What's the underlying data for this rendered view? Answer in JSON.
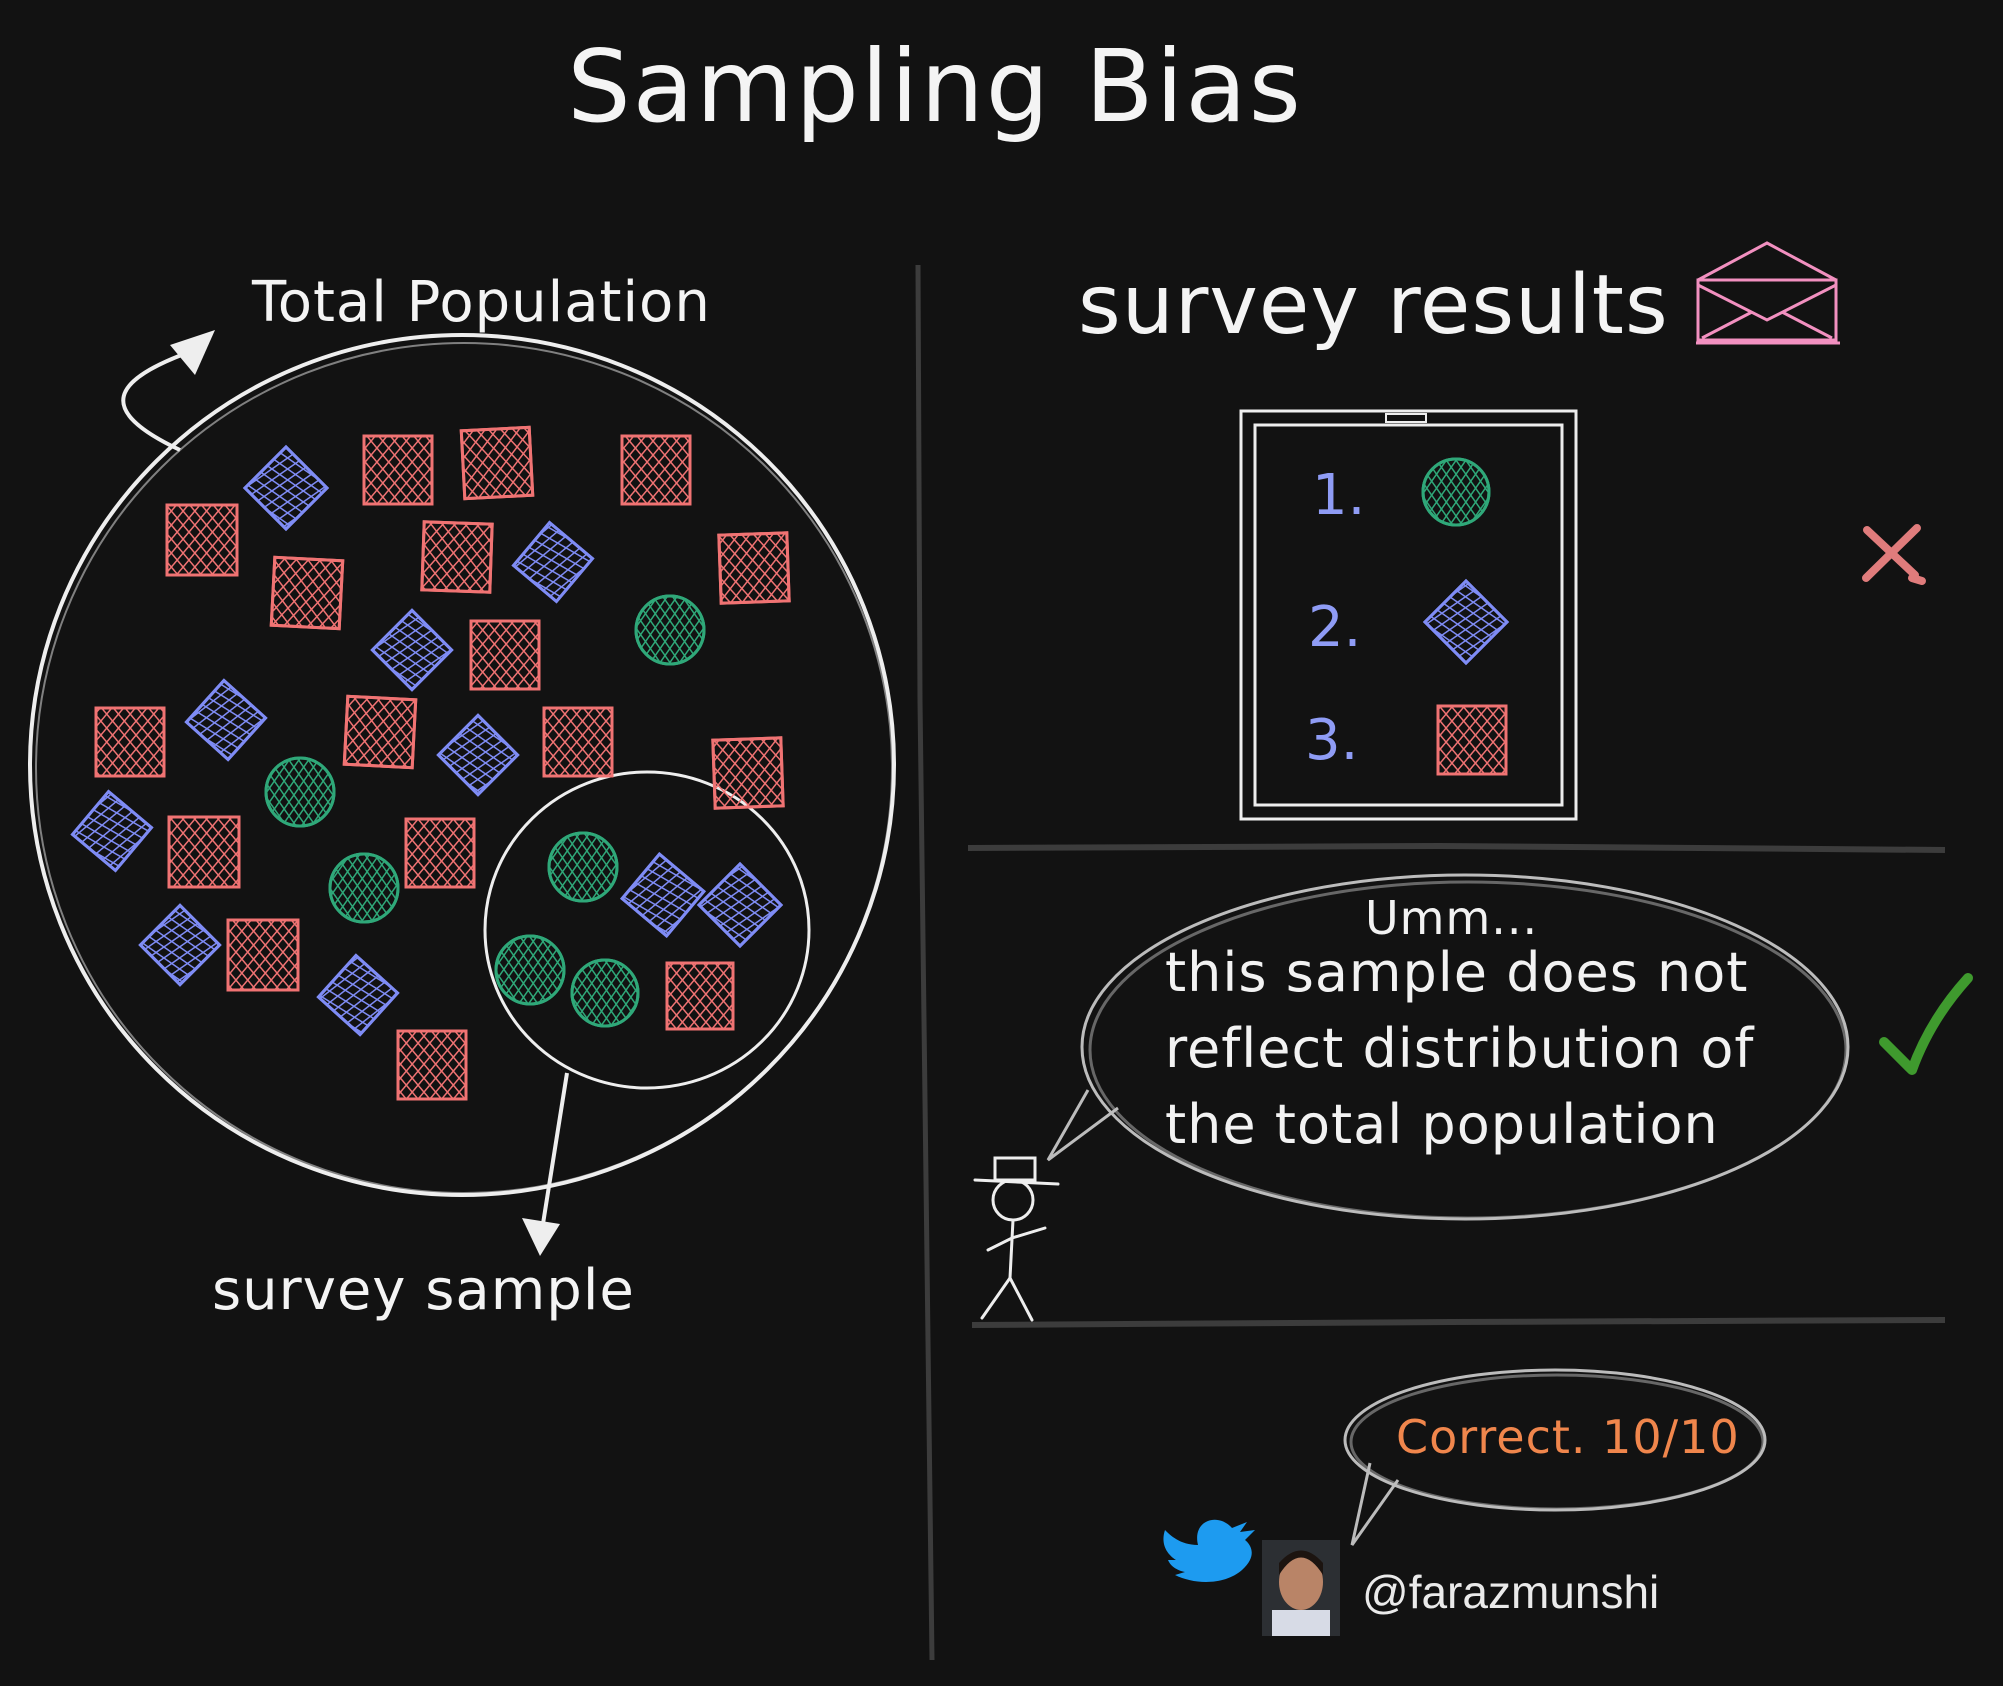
{
  "title": "Sampling Bias",
  "left": {
    "population_label": "Total Population",
    "sample_label": "survey sample"
  },
  "right": {
    "results_label": "survey results",
    "ranks": [
      "1.",
      "2.",
      "3."
    ],
    "wrong_icon": "cross-icon",
    "right_icon": "check-icon",
    "colors": {
      "red": "#f07373",
      "blue": "#7f8cf5",
      "green": "#2fa879",
      "pink": "#f290c0",
      "cross": "#e07c7c",
      "check": "#3f9a2e"
    }
  },
  "speech": {
    "line1": "Umm...",
    "line2": "this sample does not",
    "line3": "reflect distribution of",
    "line4": "the total population"
  },
  "reply": "Correct. 10/10",
  "author": {
    "handle": "@farazmunshi",
    "icon": "twitter-bird-icon",
    "avatar": "avatar"
  }
}
